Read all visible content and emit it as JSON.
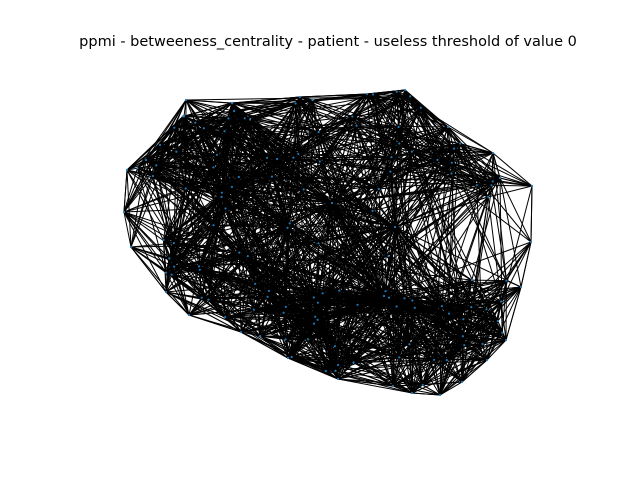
{
  "title": "ppmi - betweeness_centrality - patient - useless threshold of value 0",
  "graph": {
    "layout": "spring",
    "node_count": 150,
    "edge_color": "#000000",
    "node_color": "#1f77b4",
    "background": "#ffffff"
  }
}
